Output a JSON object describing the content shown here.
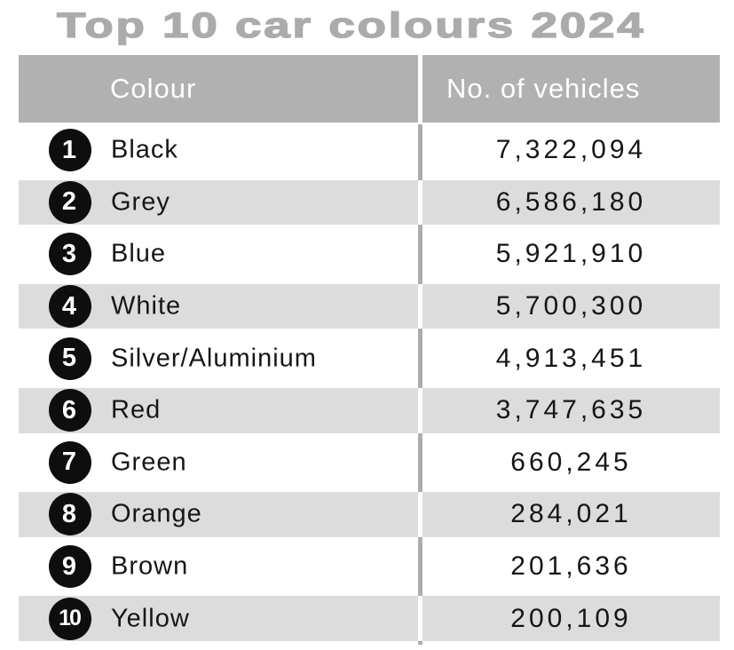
{
  "title": "Top 10 car colours 2024",
  "table": {
    "header": {
      "colour": "Colour",
      "vehicles": "No. of vehicles"
    },
    "rows": [
      {
        "rank": "1",
        "colour": "Black",
        "vehicles": "7,322,094"
      },
      {
        "rank": "2",
        "colour": "Grey",
        "vehicles": "6,586,180"
      },
      {
        "rank": "3",
        "colour": "Blue",
        "vehicles": "5,921,910"
      },
      {
        "rank": "4",
        "colour": "White",
        "vehicles": "5,700,300"
      },
      {
        "rank": "5",
        "colour": "Silver/Aluminium",
        "vehicles": "4,913,451"
      },
      {
        "rank": "6",
        "colour": "Red",
        "vehicles": "3,747,635"
      },
      {
        "rank": "7",
        "colour": "Green",
        "vehicles": "660,245"
      },
      {
        "rank": "8",
        "colour": "Orange",
        "vehicles": "284,021"
      },
      {
        "rank": "9",
        "colour": "Brown",
        "vehicles": "201,636"
      },
      {
        "rank": "10",
        "colour": "Yellow",
        "vehicles": "200,109"
      }
    ]
  },
  "colors": {
    "title_text": "#ababab",
    "header_bg": "#b1b1b1",
    "header_text": "#ffffff",
    "row_band_bg": "#dcdcdc",
    "column_divider_gray": "#adadad",
    "column_divider_white": "#ffffff",
    "body_text": "#161616",
    "badge_bg": "#0e0e0e",
    "badge_text": "#ffffff"
  },
  "chart_data": {
    "type": "table",
    "title": "Top 10 car colours 2024",
    "columns": [
      "Colour",
      "No. of vehicles"
    ],
    "categories": [
      "Black",
      "Grey",
      "Blue",
      "White",
      "Silver/Aluminium",
      "Red",
      "Green",
      "Orange",
      "Brown",
      "Yellow"
    ],
    "values": [
      7322094,
      6586180,
      5921910,
      5700300,
      4913451,
      3747635,
      660245,
      284021,
      201636,
      200109
    ],
    "ranks": [
      1,
      2,
      3,
      4,
      5,
      6,
      7,
      8,
      9,
      10
    ],
    "row_striping": "even rows shaded light gray",
    "legend_position": "none",
    "grid": "off"
  }
}
